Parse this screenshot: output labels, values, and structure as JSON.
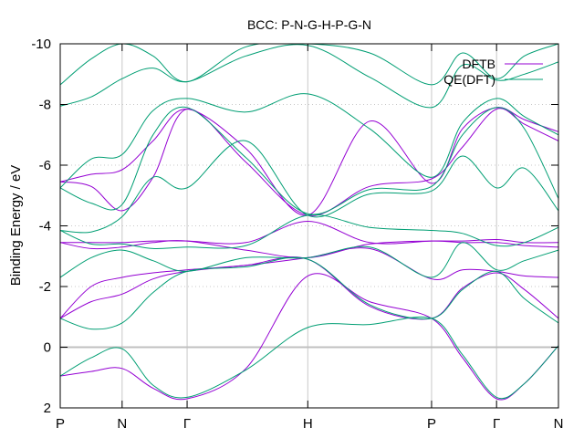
{
  "chart_data": {
    "type": "line",
    "title": "BCC: P-N-G-H-P-G-N",
    "xlabel": "",
    "ylabel": "Binding Energy / eV",
    "y_inverted": true,
    "ylim": [
      -10,
      2
    ],
    "y_ticks": [
      -10,
      -8,
      -6,
      -4,
      -2,
      0,
      2
    ],
    "x_ticks": [
      {
        "x": 0,
        "label": "P"
      },
      {
        "x": 0.2,
        "label": "N"
      },
      {
        "x": 0.41,
        "label": "Γ"
      },
      {
        "x": 0.8,
        "label": "H"
      },
      {
        "x": 1.2,
        "label": "P"
      },
      {
        "x": 1.41,
        "label": "Γ"
      },
      {
        "x": 1.61,
        "label": "N"
      }
    ],
    "xlim": [
      0,
      1.61
    ],
    "grid": "dotted vertical at high-symmetry points and horizontal at y ticks",
    "zero_line": 0,
    "legend_position": "top-right",
    "colors": {
      "DFTB": "#9400d3",
      "QE(DFT)": "#009e73",
      "grid": "#c8c8c8",
      "zero_line": "#c0c0c0"
    },
    "series": [
      {
        "name": "DFTB",
        "bands": [
          [
            [
              0,
              0.95
            ],
            [
              0.1,
              0.8
            ],
            [
              0.2,
              0.7
            ],
            [
              0.3,
              1.35
            ],
            [
              0.41,
              1.7
            ],
            [
              0.6,
              0.7
            ],
            [
              0.8,
              -2.35
            ],
            [
              1.0,
              -1.5
            ],
            [
              1.2,
              -0.95
            ],
            [
              1.3,
              0.35
            ],
            [
              1.41,
              1.7
            ],
            [
              1.5,
              1.2
            ],
            [
              1.61,
              -0.05
            ]
          ],
          [
            [
              0,
              -0.95
            ],
            [
              0.1,
              -1.5
            ],
            [
              0.2,
              -1.75
            ],
            [
              0.3,
              -2.25
            ],
            [
              0.41,
              -2.5
            ],
            [
              0.6,
              -2.7
            ],
            [
              0.8,
              -2.9
            ],
            [
              1.0,
              -1.35
            ],
            [
              1.2,
              -0.95
            ],
            [
              1.3,
              -1.95
            ],
            [
              1.41,
              -2.45
            ],
            [
              1.5,
              -1.9
            ],
            [
              1.61,
              -0.95
            ]
          ],
          [
            [
              0,
              -0.95
            ],
            [
              0.1,
              -2.0
            ],
            [
              0.2,
              -2.3
            ],
            [
              0.3,
              -2.45
            ],
            [
              0.41,
              -2.55
            ],
            [
              0.6,
              -2.7
            ],
            [
              0.8,
              -2.95
            ],
            [
              1.0,
              -3.25
            ],
            [
              1.2,
              -2.25
            ],
            [
              1.3,
              -2.55
            ],
            [
              1.41,
              -2.5
            ],
            [
              1.5,
              -2.35
            ],
            [
              1.61,
              -2.3
            ]
          ],
          [
            [
              0,
              -3.45
            ],
            [
              0.1,
              -3.25
            ],
            [
              0.2,
              -3.3
            ],
            [
              0.3,
              -3.45
            ],
            [
              0.41,
              -3.5
            ],
            [
              0.6,
              -3.2
            ],
            [
              0.8,
              -2.95
            ],
            [
              1.0,
              -3.4
            ],
            [
              1.2,
              -3.5
            ],
            [
              1.3,
              -3.45
            ],
            [
              1.41,
              -3.45
            ],
            [
              1.5,
              -3.35
            ],
            [
              1.61,
              -3.3
            ]
          ],
          [
            [
              0,
              -3.45
            ],
            [
              0.1,
              -3.45
            ],
            [
              0.2,
              -3.45
            ],
            [
              0.3,
              -3.5
            ],
            [
              0.41,
              -3.5
            ],
            [
              0.6,
              -3.45
            ],
            [
              0.8,
              -4.15
            ],
            [
              1.0,
              -3.45
            ],
            [
              1.2,
              -3.5
            ],
            [
              1.3,
              -3.5
            ],
            [
              1.41,
              -3.55
            ],
            [
              1.5,
              -3.45
            ],
            [
              1.61,
              -3.45
            ]
          ],
          [
            [
              0,
              -5.45
            ],
            [
              0.1,
              -5.3
            ],
            [
              0.2,
              -4.5
            ],
            [
              0.3,
              -5.6
            ],
            [
              0.41,
              -7.85
            ],
            [
              0.6,
              -6.1
            ],
            [
              0.8,
              -4.35
            ],
            [
              1.0,
              -5.3
            ],
            [
              1.2,
              -5.55
            ],
            [
              1.3,
              -6.6
            ],
            [
              1.41,
              -7.85
            ],
            [
              1.5,
              -7.35
            ],
            [
              1.61,
              -6.8
            ]
          ],
          [
            [
              0,
              -5.45
            ],
            [
              0.1,
              -5.7
            ],
            [
              0.2,
              -5.85
            ],
            [
              0.3,
              -6.8
            ],
            [
              0.41,
              -7.85
            ],
            [
              0.6,
              -6.55
            ],
            [
              0.8,
              -4.35
            ],
            [
              1.0,
              -7.45
            ],
            [
              1.2,
              -5.4
            ],
            [
              1.3,
              -7.2
            ],
            [
              1.41,
              -7.9
            ],
            [
              1.5,
              -7.5
            ],
            [
              1.61,
              -7.1
            ]
          ]
        ]
      },
      {
        "name": "QE(DFT)",
        "bands": [
          [
            [
              0,
              0.95
            ],
            [
              0.1,
              0.35
            ],
            [
              0.2,
              0.05
            ],
            [
              0.3,
              1.25
            ],
            [
              0.41,
              1.65
            ],
            [
              0.6,
              0.75
            ],
            [
              0.8,
              -0.65
            ],
            [
              1.0,
              -0.75
            ],
            [
              1.2,
              -0.95
            ],
            [
              1.3,
              0.25
            ],
            [
              1.41,
              1.65
            ],
            [
              1.5,
              1.2
            ],
            [
              1.61,
              -0.05
            ]
          ],
          [
            [
              0,
              -0.95
            ],
            [
              0.1,
              -0.6
            ],
            [
              0.2,
              -0.8
            ],
            [
              0.3,
              -1.8
            ],
            [
              0.41,
              -2.5
            ],
            [
              0.6,
              -2.65
            ],
            [
              0.8,
              -2.9
            ],
            [
              1.0,
              -1.4
            ],
            [
              1.2,
              -0.95
            ],
            [
              1.3,
              -1.9
            ],
            [
              1.41,
              -2.5
            ],
            [
              1.5,
              -1.6
            ],
            [
              1.61,
              -0.8
            ]
          ],
          [
            [
              0,
              -2.3
            ],
            [
              0.1,
              -2.95
            ],
            [
              0.2,
              -3.2
            ],
            [
              0.3,
              -2.85
            ],
            [
              0.41,
              -2.5
            ],
            [
              0.6,
              -2.95
            ],
            [
              0.8,
              -2.95
            ],
            [
              1.0,
              -3.3
            ],
            [
              1.2,
              -2.3
            ],
            [
              1.3,
              -3.45
            ],
            [
              1.41,
              -2.55
            ],
            [
              1.5,
              -2.85
            ],
            [
              1.61,
              -3.2
            ]
          ],
          [
            [
              0,
              -3.85
            ],
            [
              0.1,
              -3.4
            ],
            [
              0.2,
              -3.4
            ],
            [
              0.3,
              -3.25
            ],
            [
              0.41,
              -3.3
            ],
            [
              0.6,
              -3.35
            ],
            [
              0.8,
              -4.35
            ],
            [
              1.0,
              -3.95
            ],
            [
              1.2,
              -3.85
            ],
            [
              1.3,
              -3.75
            ],
            [
              1.41,
              -3.35
            ],
            [
              1.5,
              -3.45
            ],
            [
              1.61,
              -3.95
            ]
          ],
          [
            [
              0,
              -3.85
            ],
            [
              0.1,
              -3.8
            ],
            [
              0.2,
              -4.3
            ],
            [
              0.3,
              -5.6
            ],
            [
              0.41,
              -5.25
            ],
            [
              0.6,
              -6.8
            ],
            [
              0.8,
              -4.35
            ],
            [
              1.0,
              -5.05
            ],
            [
              1.2,
              -5.15
            ],
            [
              1.3,
              -6.3
            ],
            [
              1.41,
              -5.25
            ],
            [
              1.5,
              -5.9
            ],
            [
              1.61,
              -4.5
            ]
          ],
          [
            [
              0,
              -5.25
            ],
            [
              0.1,
              -4.75
            ],
            [
              0.2,
              -4.7
            ],
            [
              0.3,
              -7.0
            ],
            [
              0.41,
              -7.9
            ],
            [
              0.6,
              -6.25
            ],
            [
              0.8,
              -4.4
            ],
            [
              1.0,
              -5.2
            ],
            [
              1.2,
              -5.3
            ],
            [
              1.3,
              -7.0
            ],
            [
              1.41,
              -7.9
            ],
            [
              1.5,
              -7.2
            ],
            [
              1.61,
              -4.9
            ]
          ],
          [
            [
              0,
              -5.25
            ],
            [
              0.1,
              -6.2
            ],
            [
              0.2,
              -6.35
            ],
            [
              0.3,
              -7.8
            ],
            [
              0.41,
              -8.2
            ],
            [
              0.6,
              -7.75
            ],
            [
              0.8,
              -8.35
            ],
            [
              1.0,
              -7.2
            ],
            [
              1.2,
              -5.6
            ],
            [
              1.3,
              -7.4
            ],
            [
              1.41,
              -8.2
            ],
            [
              1.5,
              -7.6
            ],
            [
              1.61,
              -7.0
            ]
          ],
          [
            [
              0,
              -7.95
            ],
            [
              0.1,
              -8.25
            ],
            [
              0.2,
              -8.85
            ],
            [
              0.3,
              -9.2
            ],
            [
              0.41,
              -8.75
            ],
            [
              0.6,
              -9.6
            ],
            [
              0.8,
              -9.95
            ],
            [
              1.0,
              -8.9
            ],
            [
              1.2,
              -7.9
            ],
            [
              1.3,
              -9.3
            ],
            [
              1.41,
              -8.8
            ],
            [
              1.5,
              -9.0
            ],
            [
              1.61,
              -9.4
            ]
          ],
          [
            [
              0,
              -8.65
            ],
            [
              0.1,
              -9.5
            ],
            [
              0.2,
              -10.0
            ],
            [
              0.3,
              -9.6
            ],
            [
              0.41,
              -8.75
            ],
            [
              0.6,
              -9.9
            ],
            [
              0.8,
              -10.0
            ],
            [
              1.0,
              -9.7
            ],
            [
              1.2,
              -8.65
            ],
            [
              1.3,
              -9.7
            ],
            [
              1.41,
              -8.85
            ],
            [
              1.5,
              -9.6
            ],
            [
              1.61,
              -10.0
            ]
          ]
        ]
      }
    ]
  }
}
